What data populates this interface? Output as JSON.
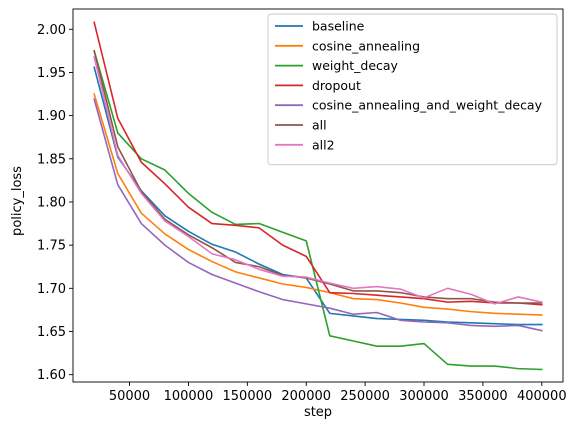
{
  "chart_data": {
    "type": "line",
    "xlabel": "step",
    "ylabel": "policy_loss",
    "xlim": [
      2000,
      418000
    ],
    "ylim": [
      1.5915,
      2.0235
    ],
    "x_ticks": [
      50000,
      100000,
      150000,
      200000,
      250000,
      300000,
      350000,
      400000
    ],
    "x_tick_labels": [
      "50000",
      "100000",
      "150000",
      "200000",
      "250000",
      "300000",
      "350000",
      "400000"
    ],
    "y_ticks": [
      1.6,
      1.65,
      1.7,
      1.75,
      1.8,
      1.85,
      1.9,
      1.95,
      2.0
    ],
    "y_tick_labels": [
      "1.60",
      "1.65",
      "1.70",
      "1.75",
      "1.80",
      "1.85",
      "1.90",
      "1.95",
      "2.00"
    ],
    "grid": false,
    "legend_position": "top-right",
    "x": [
      20000,
      40000,
      60000,
      80000,
      100000,
      120000,
      140000,
      160000,
      180000,
      200000,
      220000,
      240000,
      260000,
      280000,
      300000,
      320000,
      340000,
      360000,
      380000,
      400000
    ],
    "series": [
      {
        "name": "baseline",
        "color": "#1f77b4",
        "values": [
          1.956,
          1.852,
          1.813,
          1.784,
          1.766,
          1.751,
          1.742,
          1.728,
          1.716,
          1.712,
          1.671,
          1.668,
          1.665,
          1.664,
          1.663,
          1.661,
          1.66,
          1.659,
          1.658,
          1.658
        ]
      },
      {
        "name": "cosine_annealing",
        "color": "#ff7f0e",
        "values": [
          1.925,
          1.833,
          1.787,
          1.763,
          1.745,
          1.731,
          1.719,
          1.712,
          1.705,
          1.701,
          1.695,
          1.688,
          1.687,
          1.683,
          1.678,
          1.676,
          1.673,
          1.671,
          1.67,
          1.669
        ]
      },
      {
        "name": "weight_decay",
        "color": "#2ca02c",
        "values": [
          1.975,
          1.88,
          1.85,
          1.837,
          1.81,
          1.788,
          1.774,
          1.775,
          1.765,
          1.755,
          1.645,
          1.639,
          1.633,
          1.633,
          1.636,
          1.612,
          1.61,
          1.61,
          1.607,
          1.606
        ]
      },
      {
        "name": "dropout",
        "color": "#d62728",
        "values": [
          2.008,
          1.897,
          1.846,
          1.821,
          1.794,
          1.775,
          1.773,
          1.77,
          1.75,
          1.737,
          1.695,
          1.694,
          1.692,
          1.69,
          1.688,
          1.684,
          1.685,
          1.683,
          1.683,
          1.681
        ]
      },
      {
        "name": "cosine_annealing_and_weight_decay",
        "color": "#9467bd",
        "values": [
          1.919,
          1.82,
          1.775,
          1.75,
          1.73,
          1.716,
          1.706,
          1.696,
          1.687,
          1.682,
          1.677,
          1.67,
          1.672,
          1.663,
          1.661,
          1.66,
          1.657,
          1.656,
          1.657,
          1.651
        ]
      },
      {
        "name": "all",
        "color": "#8c564b",
        "values": [
          1.975,
          1.864,
          1.812,
          1.78,
          1.762,
          1.747,
          1.73,
          1.725,
          1.715,
          1.712,
          1.705,
          1.697,
          1.697,
          1.695,
          1.69,
          1.688,
          1.688,
          1.684,
          1.683,
          1.683
        ]
      },
      {
        "name": "all2",
        "color": "#e377c2",
        "values": [
          1.968,
          1.854,
          1.81,
          1.778,
          1.76,
          1.74,
          1.733,
          1.722,
          1.714,
          1.713,
          1.706,
          1.7,
          1.702,
          1.699,
          1.689,
          1.7,
          1.693,
          1.682,
          1.69,
          1.684
        ]
      }
    ]
  }
}
